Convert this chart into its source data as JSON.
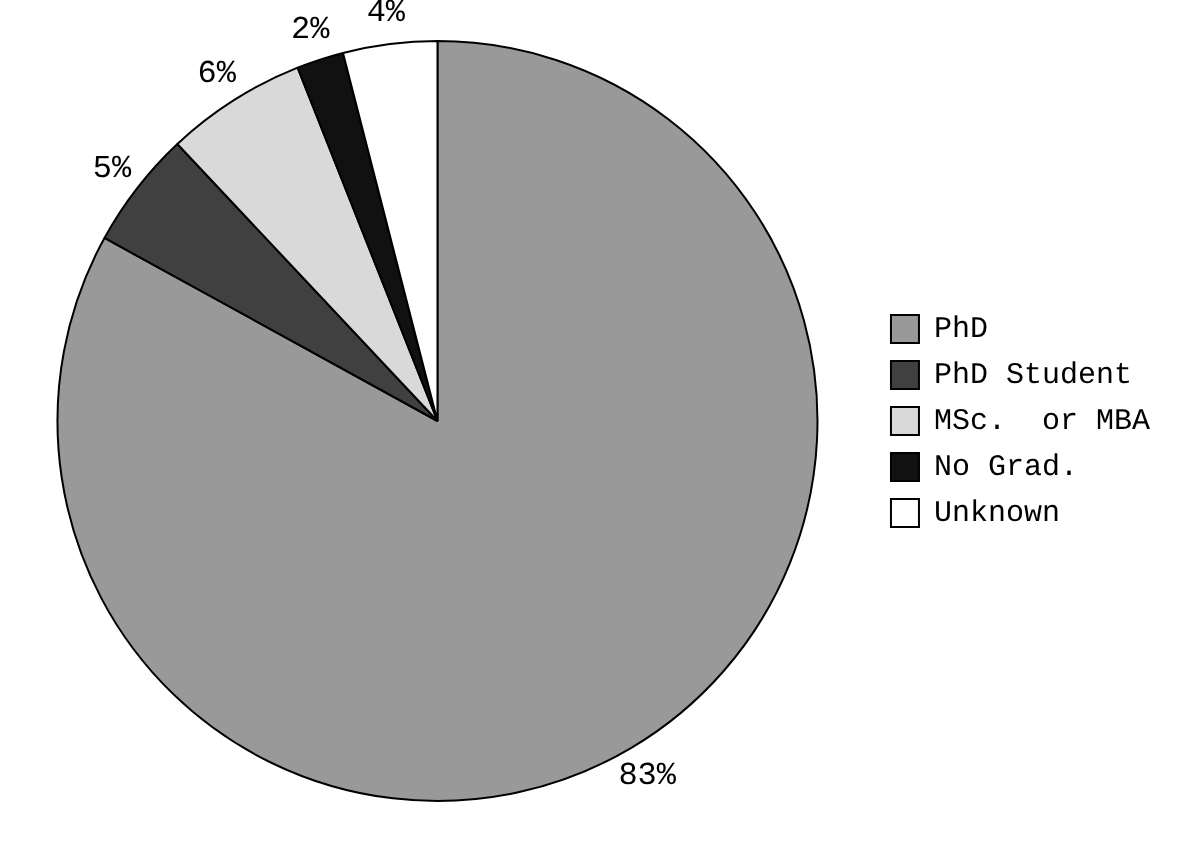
{
  "chart_data": {
    "type": "pie",
    "categories": [
      "PhD",
      "PhD Student",
      "MSc.  or MBA",
      "No Grad.",
      "Unknown"
    ],
    "values": [
      83,
      5,
      6,
      2,
      4
    ],
    "colors": [
      "#999999",
      "#404040",
      "#d9d9d9",
      "#111111",
      "#ffffff"
    ],
    "value_labels": [
      "83%",
      "5%",
      "6%",
      "2%",
      "4%"
    ],
    "legend": "right"
  }
}
